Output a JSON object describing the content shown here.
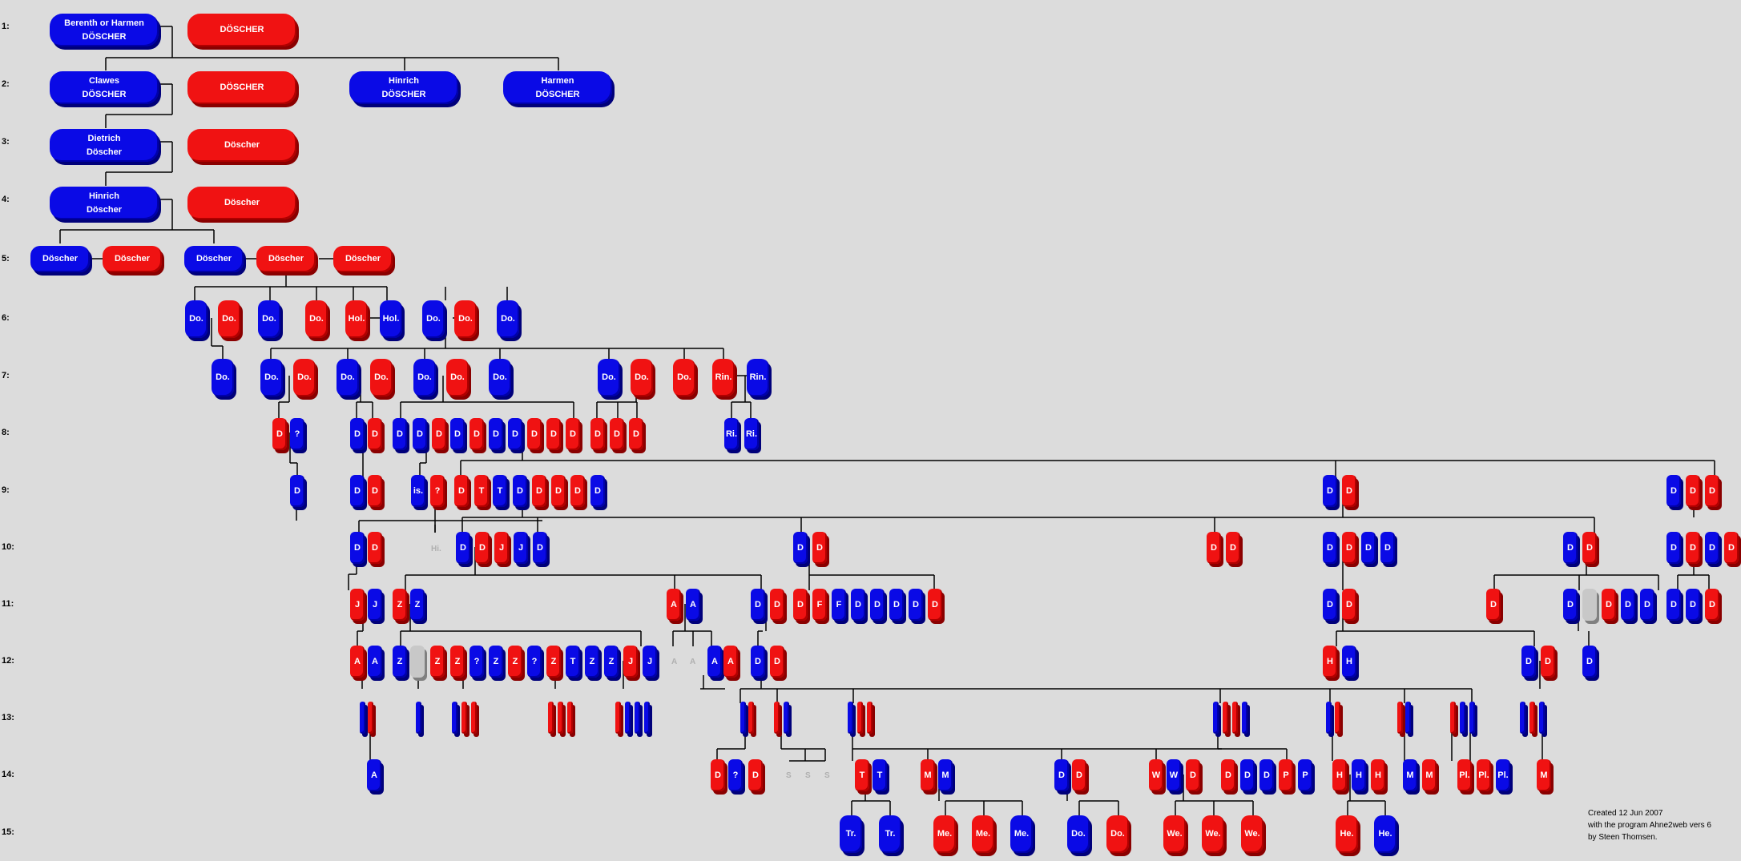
{
  "generations": [
    "1:",
    "2:",
    "3:",
    "4:",
    "5:",
    "6:",
    "7:",
    "8:",
    "9:",
    "10:",
    "11:",
    "12:",
    "13:",
    "14:",
    "15:"
  ],
  "footer": {
    "line1": "Created 12 Jun 2007",
    "line2": "with the program Ahne2web vers 6",
    "line3": "by Steen Thomsen."
  },
  "colors": {
    "male": "#0a0ae6",
    "female": "#f01212",
    "unknown": "#c8c8c8",
    "background": "#dcdcdc",
    "connector": "#000000"
  },
  "persons": {
    "g1_father": "Berenth or Harmen\nDÖSCHER",
    "g1_mother": "DÖSCHER",
    "g2_clawes": "Clawes\nDÖSCHER",
    "g2_mother": "DÖSCHER",
    "g2_hinrich": "Hinrich\nDÖSCHER",
    "g2_harmen": "Harmen\nDÖSCHER",
    "g3_dietrich": "Dietrich\nDöscher",
    "g3_mother": "Döscher",
    "g4_hinrich": "Hinrich\nDöscher",
    "g4_mother": "Döscher",
    "g5_a": "Döscher",
    "g5_b": "Döscher",
    "g5_c": "Döscher",
    "g5_d": "Döscher",
    "g5_e": "Döscher"
  },
  "labels": {
    "do": "Do.",
    "hol": "Hol.",
    "rin": "Rin.",
    "ri": "Ri.",
    "is": "is.",
    "q": "?",
    "d": "D",
    "t": "T",
    "j": "J",
    "z": "Z",
    "a": "A",
    "f": "F",
    "h": "H",
    "m": "M",
    "pl": "Pl.",
    "p": "P",
    "w": "W",
    "tr": "Tr.",
    "me": "Me.",
    "we": "We.",
    "he": "He."
  },
  "ghosts": {
    "hi": "Hi.",
    "a": "A",
    "s": "S"
  }
}
